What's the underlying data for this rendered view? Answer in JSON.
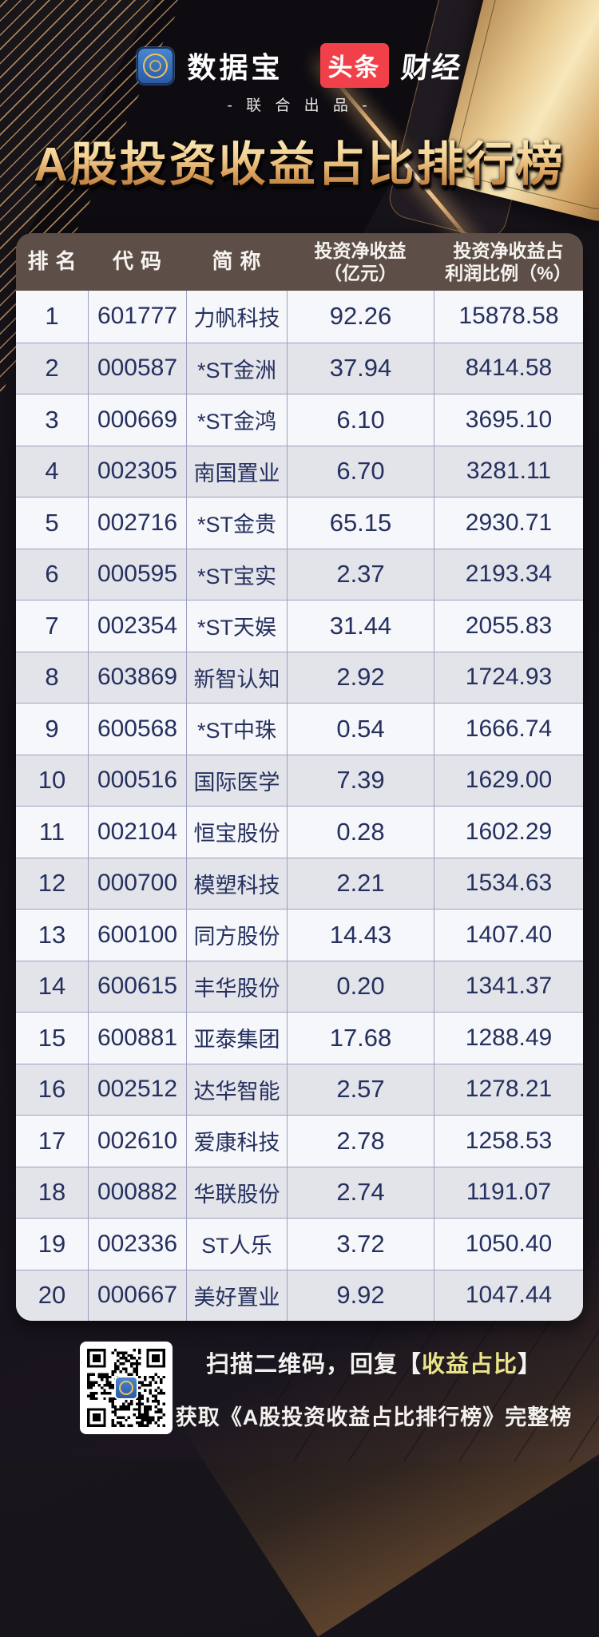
{
  "header": {
    "brand1": "数据宝",
    "brand2_badge": "头条",
    "brand2_rest": "财经",
    "subtitle": "- 联 合 出 品 -"
  },
  "title": "A股投资收益占比排行榜",
  "chart_data": {
    "type": "table",
    "title": "A股投资收益占比排行榜",
    "columns": [
      "排名",
      "代码",
      "简称",
      "投资净收益（亿元）",
      "投资净收益占利润比例（%）"
    ],
    "header_lines": {
      "c1": "排名",
      "c2": "代码",
      "c3": "简称",
      "c4a": "投资净收益",
      "c4b": "（亿元）",
      "c5a": "投资净收益占",
      "c5b": "利润比例（%）"
    },
    "rows": [
      [
        "1",
        "601777",
        "力帆科技",
        "92.26",
        "15878.58"
      ],
      [
        "2",
        "000587",
        "*ST金洲",
        "37.94",
        "8414.58"
      ],
      [
        "3",
        "000669",
        "*ST金鸿",
        "6.10",
        "3695.10"
      ],
      [
        "4",
        "002305",
        "南国置业",
        "6.70",
        "3281.11"
      ],
      [
        "5",
        "002716",
        "*ST金贵",
        "65.15",
        "2930.71"
      ],
      [
        "6",
        "000595",
        "*ST宝实",
        "2.37",
        "2193.34"
      ],
      [
        "7",
        "002354",
        "*ST天娱",
        "31.44",
        "2055.83"
      ],
      [
        "8",
        "603869",
        "新智认知",
        "2.92",
        "1724.93"
      ],
      [
        "9",
        "600568",
        "*ST中珠",
        "0.54",
        "1666.74"
      ],
      [
        "10",
        "000516",
        "国际医学",
        "7.39",
        "1629.00"
      ],
      [
        "11",
        "002104",
        "恒宝股份",
        "0.28",
        "1602.29"
      ],
      [
        "12",
        "000700",
        "模塑科技",
        "2.21",
        "1534.63"
      ],
      [
        "13",
        "600100",
        "同方股份",
        "14.43",
        "1407.40"
      ],
      [
        "14",
        "600615",
        "丰华股份",
        "0.20",
        "1341.37"
      ],
      [
        "15",
        "600881",
        "亚泰集团",
        "17.68",
        "1288.49"
      ],
      [
        "16",
        "002512",
        "达华智能",
        "2.57",
        "1278.21"
      ],
      [
        "17",
        "002610",
        "爱康科技",
        "2.78",
        "1258.53"
      ],
      [
        "18",
        "000882",
        "华联股份",
        "2.74",
        "1191.07"
      ],
      [
        "19",
        "002336",
        "ST人乐",
        "3.72",
        "1050.40"
      ],
      [
        "20",
        "000667",
        "美好置业",
        "9.92",
        "1047.44"
      ]
    ]
  },
  "footer": {
    "line1_prefix": "扫描二维码，回复【",
    "line1_highlight": "收益占比",
    "line1_suffix": "】",
    "line2": "获取《A股投资收益占比排行榜》完整榜"
  },
  "colors": {
    "badge_red": "#f2404a",
    "logo_blue": "#2f66b0",
    "header_brown": "#5d4f48",
    "table_text": "#25305f",
    "accent_gold": "#e3b36b",
    "highlight_yellow": "#e9e489"
  }
}
